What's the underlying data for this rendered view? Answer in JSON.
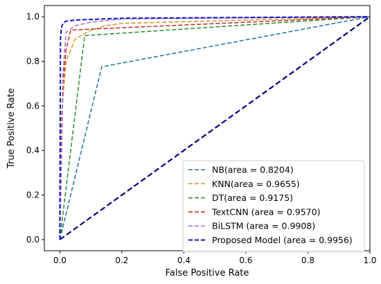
{
  "chart_data": {
    "type": "line",
    "title": "",
    "xlabel": "False Positive Rate",
    "ylabel": "True Positive Rate",
    "xlim": [
      -0.05,
      1.0
    ],
    "ylim": [
      -0.05,
      1.05
    ],
    "xticks": [
      "0.0",
      "0.2",
      "0.4",
      "0.6",
      "0.8",
      "1.0"
    ],
    "yticks": [
      "0.0",
      "0.2",
      "0.4",
      "0.6",
      "0.8",
      "1.0"
    ],
    "grid": false,
    "legend_position": "lower-right",
    "diagonal": {
      "x": [
        0,
        1
      ],
      "y": [
        0,
        1
      ],
      "color": "#000080"
    },
    "series": [
      {
        "name": "NB(area = 0.8204)",
        "color": "#1f6fa0",
        "x": [
          0.0,
          0.135,
          1.0
        ],
        "y": [
          0.0,
          0.775,
          1.0
        ]
      },
      {
        "name": "KNN(area = 0.9655)",
        "color": "#e08a1e",
        "x": [
          0.0,
          0.005,
          0.02,
          0.05,
          0.1,
          0.15,
          0.2,
          1.0
        ],
        "y": [
          0.0,
          0.55,
          0.8,
          0.9,
          0.94,
          0.96,
          0.97,
          1.0
        ]
      },
      {
        "name": "DT(area = 0.9175)",
        "color": "#2a8a2a",
        "x": [
          0.0,
          0.08,
          1.0
        ],
        "y": [
          0.0,
          0.915,
          1.0
        ]
      },
      {
        "name": "TextCNN (area = 0.9570)",
        "color": "#c0281c",
        "x": [
          0.0,
          0.01,
          0.02,
          0.035,
          1.0
        ],
        "y": [
          0.0,
          0.7,
          0.85,
          0.94,
          1.0
        ]
      },
      {
        "name": "BiLSTM (area = 0.9908)",
        "color": "#9d6fd0",
        "x": [
          0.0,
          0.01,
          0.02,
          0.05,
          0.1,
          0.2,
          1.0
        ],
        "y": [
          0.0,
          0.75,
          0.93,
          0.96,
          0.975,
          0.99,
          1.0
        ]
      },
      {
        "name": "Proposed Model (area = 0.9956)",
        "color": "#0a12c8",
        "x": [
          0.0,
          0.002,
          0.005,
          0.01,
          0.02,
          0.05,
          0.2,
          1.0
        ],
        "y": [
          0.0,
          0.9,
          0.95,
          0.97,
          0.98,
          0.985,
          0.993,
          1.0
        ]
      }
    ]
  }
}
